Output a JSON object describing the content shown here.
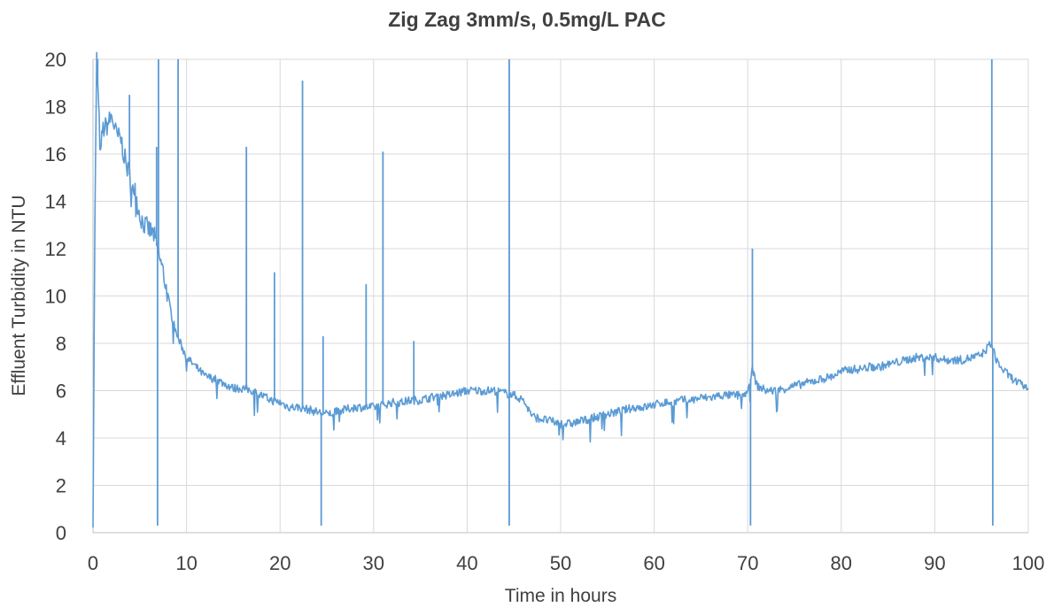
{
  "chart_data": {
    "type": "line",
    "title": "Zig Zag 3mm/s, 0.5mg/L PAC",
    "xlabel": "Time in hours",
    "ylabel": "Effluent Turbidity in NTU",
    "xlim": [
      0,
      100
    ],
    "ylim": [
      0,
      20
    ],
    "x_ticks": [
      "0",
      "10",
      "20",
      "30",
      "40",
      "50",
      "60",
      "70",
      "80",
      "90",
      "100"
    ],
    "y_ticks": [
      "0",
      "2",
      "4",
      "6",
      "8",
      "10",
      "12",
      "14",
      "16",
      "18",
      "20"
    ],
    "grid": true,
    "legend": "none",
    "series_color": "#5b9bd5",
    "series": [
      {
        "points": [
          [
            0,
            0.4
          ],
          [
            0.2,
            13
          ],
          [
            0.4,
            20
          ],
          [
            0.6,
            18.0
          ],
          [
            0.8,
            15.8
          ],
          [
            1.0,
            17.0
          ],
          [
            1.5,
            17.2
          ],
          [
            2.0,
            17.6
          ],
          [
            2.5,
            16.8
          ],
          [
            3.0,
            16.6
          ],
          [
            3.5,
            15.6
          ],
          [
            4.0,
            15.0
          ],
          [
            4.5,
            14.4
          ],
          [
            5.0,
            13.4
          ],
          [
            5.5,
            13.0
          ],
          [
            6.0,
            12.8
          ],
          [
            6.5,
            12.6
          ],
          [
            7.0,
            11.8
          ],
          [
            7.5,
            11.0
          ],
          [
            8.0,
            10.0
          ],
          [
            8.5,
            9.0
          ],
          [
            9.0,
            8.3
          ],
          [
            10.0,
            7.4
          ],
          [
            11.0,
            7.0
          ],
          [
            12.0,
            6.6
          ],
          [
            13.0,
            6.5
          ],
          [
            14.0,
            6.3
          ],
          [
            15.0,
            6.1
          ],
          [
            16.0,
            6.1
          ],
          [
            17.0,
            6.0
          ],
          [
            18.0,
            5.8
          ],
          [
            19.0,
            5.6
          ],
          [
            20.0,
            5.5
          ],
          [
            21.0,
            5.3
          ],
          [
            22.0,
            5.3
          ],
          [
            23.0,
            5.2
          ],
          [
            24.0,
            5.1
          ],
          [
            25.0,
            5.0
          ],
          [
            26.0,
            5.1
          ],
          [
            27.0,
            5.2
          ],
          [
            28.0,
            5.3
          ],
          [
            29.0,
            5.3
          ],
          [
            30.0,
            5.3
          ],
          [
            31.0,
            5.4
          ],
          [
            32.0,
            5.5
          ],
          [
            33.0,
            5.5
          ],
          [
            34.0,
            5.6
          ],
          [
            35.0,
            5.6
          ],
          [
            36.0,
            5.7
          ],
          [
            37.0,
            5.8
          ],
          [
            38.0,
            5.8
          ],
          [
            39.0,
            5.9
          ],
          [
            40.0,
            6.0
          ],
          [
            41.0,
            6.0
          ],
          [
            42.0,
            6.0
          ],
          [
            43.0,
            6.0
          ],
          [
            44.0,
            5.9
          ],
          [
            45.0,
            5.8
          ],
          [
            46.0,
            5.6
          ],
          [
            47.0,
            4.9
          ],
          [
            48.0,
            4.8
          ],
          [
            49.0,
            4.7
          ],
          [
            50.0,
            4.6
          ],
          [
            51.0,
            4.6
          ],
          [
            52.0,
            4.7
          ],
          [
            53.0,
            4.8
          ],
          [
            54.0,
            4.9
          ],
          [
            55.0,
            5.0
          ],
          [
            56.0,
            5.1
          ],
          [
            57.0,
            5.2
          ],
          [
            58.0,
            5.3
          ],
          [
            59.0,
            5.3
          ],
          [
            60.0,
            5.4
          ],
          [
            61.0,
            5.5
          ],
          [
            62.0,
            5.5
          ],
          [
            63.0,
            5.6
          ],
          [
            64.0,
            5.6
          ],
          [
            65.0,
            5.7
          ],
          [
            66.0,
            5.7
          ],
          [
            67.0,
            5.8
          ],
          [
            68.0,
            5.8
          ],
          [
            69.0,
            5.8
          ],
          [
            70.0,
            5.9
          ],
          [
            70.5,
            6.9
          ],
          [
            71.0,
            6.2
          ],
          [
            72.0,
            6.0
          ],
          [
            73.0,
            6.0
          ],
          [
            74.0,
            6.1
          ],
          [
            75.0,
            6.2
          ],
          [
            76.0,
            6.3
          ],
          [
            77.0,
            6.4
          ],
          [
            78.0,
            6.5
          ],
          [
            79.0,
            6.6
          ],
          [
            80.0,
            6.8
          ],
          [
            81.0,
            6.9
          ],
          [
            82.0,
            6.9
          ],
          [
            83.0,
            7.0
          ],
          [
            84.0,
            7.0
          ],
          [
            85.0,
            7.1
          ],
          [
            86.0,
            7.2
          ],
          [
            87.0,
            7.3
          ],
          [
            88.0,
            7.4
          ],
          [
            89.0,
            7.4
          ],
          [
            90.0,
            7.4
          ],
          [
            91.0,
            7.3
          ],
          [
            92.0,
            7.3
          ],
          [
            93.0,
            7.3
          ],
          [
            94.0,
            7.4
          ],
          [
            95.0,
            7.5
          ],
          [
            96.0,
            8.0
          ],
          [
            96.5,
            7.4
          ],
          [
            97.0,
            7.0
          ],
          [
            98.0,
            6.6
          ],
          [
            99.0,
            6.3
          ],
          [
            100.0,
            6.1
          ]
        ],
        "spikes": [
          [
            0.5,
            20
          ],
          [
            3.9,
            18.5
          ],
          [
            6.8,
            16.3
          ],
          [
            6.9,
            0.3
          ],
          [
            7.0,
            20
          ],
          [
            9.1,
            20
          ],
          [
            16.4,
            16.3
          ],
          [
            19.4,
            11.0
          ],
          [
            22.4,
            19.1
          ],
          [
            24.4,
            0.3
          ],
          [
            24.6,
            8.3
          ],
          [
            29.2,
            10.5
          ],
          [
            31.0,
            16.1
          ],
          [
            34.3,
            8.1
          ],
          [
            44.5,
            20
          ],
          [
            44.5,
            0.3
          ],
          [
            70.3,
            0.3
          ],
          [
            70.5,
            12.0
          ],
          [
            96.1,
            20
          ],
          [
            96.2,
            0.3
          ]
        ]
      }
    ]
  }
}
